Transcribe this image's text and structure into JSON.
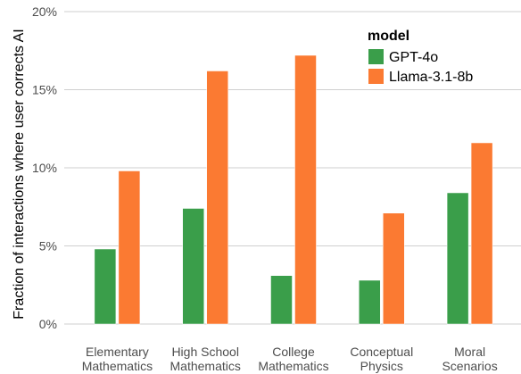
{
  "chart_data": {
    "type": "bar",
    "title": "",
    "xlabel": "",
    "ylabel": "Fraction of interactions where user corrects AI",
    "ylim": [
      0,
      0.2
    ],
    "yticks": [
      0,
      0.05,
      0.1,
      0.15,
      0.2
    ],
    "ytick_labels": [
      "0%",
      "5%",
      "10%",
      "15%",
      "20%"
    ],
    "grid": true,
    "categories": [
      [
        "Elementary",
        "Mathematics"
      ],
      [
        "High School",
        "Mathematics"
      ],
      [
        "College",
        "Mathematics"
      ],
      [
        "Conceptual",
        "Physics"
      ],
      [
        "Moral",
        "Scenarios"
      ]
    ],
    "series": [
      {
        "name": "GPT-4o",
        "color": "#3a9e4a",
        "values": [
          0.048,
          0.074,
          0.031,
          0.028,
          0.084
        ]
      },
      {
        "name": "Llama-3.1-8b",
        "color": "#fb7a32",
        "values": [
          0.098,
          0.162,
          0.172,
          0.071,
          0.116
        ]
      }
    ],
    "legend": {
      "title": "model",
      "position": "top-right"
    }
  }
}
